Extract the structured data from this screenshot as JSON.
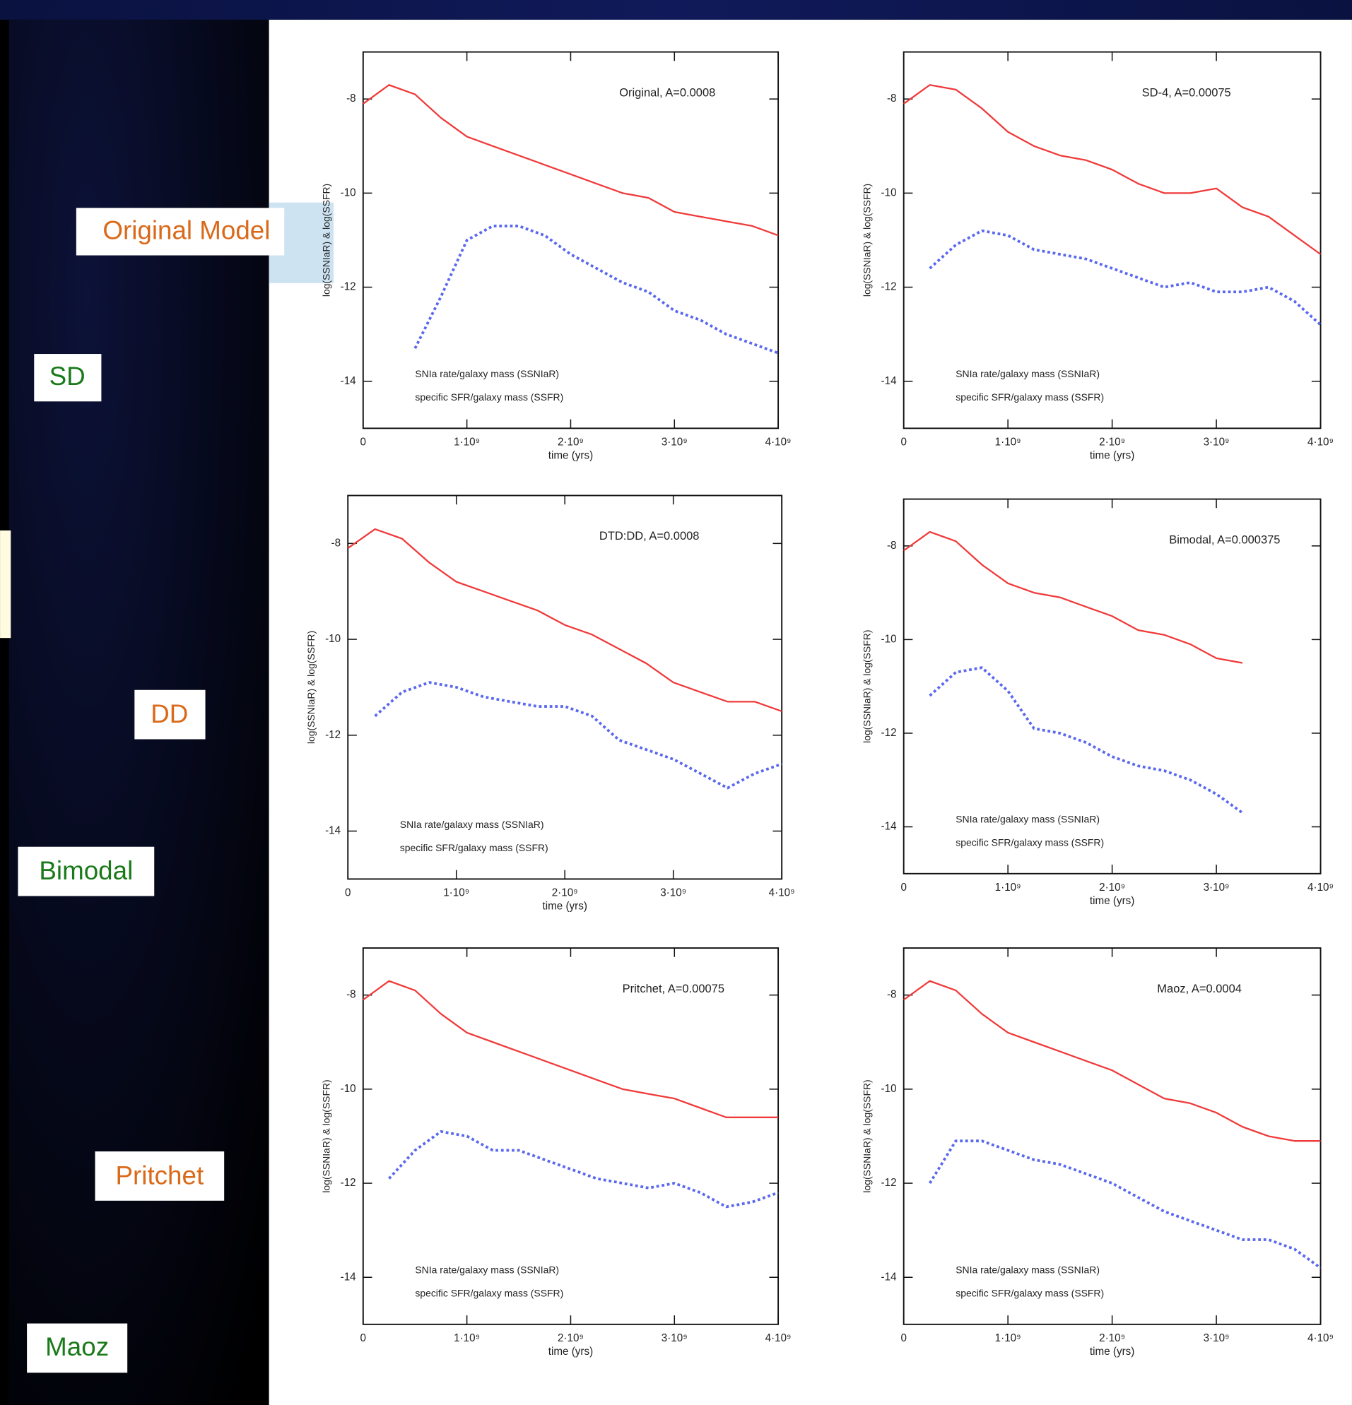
{
  "side_labels": [
    "Original Model",
    "SD",
    "DD",
    "Bimodal",
    "Pritchet",
    "Maoz"
  ],
  "chart_data": [
    {
      "type": "line",
      "title": "Original, A=0.0008",
      "xlabel": "time (yrs)",
      "ylabel": "log(SSNIaR) & log(SSFR)",
      "x": [
        0,
        250000000,
        500000000,
        750000000,
        1000000000,
        1250000000,
        1500000000,
        1750000000,
        2000000000,
        2250000000,
        2500000000,
        2750000000,
        3000000000,
        3250000000,
        3500000000,
        3750000000,
        4000000000
      ],
      "xlim": [
        0,
        4000000000
      ],
      "xticks": [
        0,
        {
          "value": 1000000000,
          "label": "1·10⁹"
        },
        {
          "value": 2000000000,
          "label": "2·10⁹"
        },
        {
          "value": 3000000000,
          "label": "3·10⁹"
        },
        {
          "value": 4000000000,
          "label": "4·10⁹"
        }
      ],
      "ylim": [
        -15,
        -7
      ],
      "yticks": [
        -8,
        -10,
        -12,
        -14
      ],
      "series": [
        {
          "name": "SNIa rate/galaxy mass (SSNIaR)",
          "color": "#5a68ee",
          "values": [
            null,
            null,
            -13.3,
            -12.2,
            -11.0,
            -10.7,
            -10.7,
            -10.9,
            -11.3,
            -11.6,
            -11.9,
            -12.1,
            -12.5,
            -12.7,
            -13.0,
            -13.2,
            -13.4
          ]
        },
        {
          "name": "specific SFR/galaxy mass (SSFR)",
          "color": "#f03a3a",
          "values": [
            -8.1,
            -7.7,
            -7.9,
            -8.4,
            -8.8,
            -9.0,
            -9.2,
            -9.4,
            -9.6,
            -9.8,
            -10.0,
            -10.1,
            -10.4,
            -10.5,
            -10.6,
            -10.7,
            -10.9
          ]
        }
      ]
    },
    {
      "type": "line",
      "title": "SD-4, A=0.00075",
      "xlabel": "time (yrs)",
      "ylabel": "log(SSNIaR) & log(SSFR)",
      "x": [
        0,
        250000000,
        500000000,
        750000000,
        1000000000,
        1250000000,
        1500000000,
        1750000000,
        2000000000,
        2250000000,
        2500000000,
        2750000000,
        3000000000,
        3250000000,
        3500000000,
        3750000000,
        4000000000
      ],
      "xlim": [
        0,
        4000000000
      ],
      "xticks": [
        0,
        {
          "value": 1000000000,
          "label": "1·10⁹"
        },
        {
          "value": 2000000000,
          "label": "2·10⁹"
        },
        {
          "value": 3000000000,
          "label": "3·10⁹"
        },
        {
          "value": 4000000000,
          "label": "4·10⁹"
        }
      ],
      "ylim": [
        -15,
        -7
      ],
      "yticks": [
        -8,
        -10,
        -12,
        -14
      ],
      "series": [
        {
          "name": "SNIa rate/galaxy mass (SSNIaR)",
          "color": "#5a68ee",
          "values": [
            null,
            -11.6,
            -11.1,
            -10.8,
            -10.9,
            -11.2,
            -11.3,
            -11.4,
            -11.6,
            -11.8,
            -12.0,
            -11.9,
            -12.1,
            -12.1,
            -12.0,
            -12.3,
            -12.8
          ]
        },
        {
          "name": "specific SFR/galaxy mass (SSFR)",
          "color": "#f03a3a",
          "values": [
            -8.1,
            -7.7,
            -7.8,
            -8.2,
            -8.7,
            -9.0,
            -9.2,
            -9.3,
            -9.5,
            -9.8,
            -10.0,
            -10.0,
            -9.9,
            -10.3,
            -10.5,
            -10.9,
            -11.3
          ]
        }
      ]
    },
    {
      "type": "line",
      "title": "DTD:DD, A=0.0008",
      "xlabel": "time (yrs)",
      "ylabel": "log(SSNIaR) & log(SSFR)",
      "x": [
        0,
        250000000,
        500000000,
        750000000,
        1000000000,
        1250000000,
        1500000000,
        1750000000,
        2000000000,
        2250000000,
        2500000000,
        2750000000,
        3000000000,
        3250000000,
        3500000000,
        3750000000,
        4000000000
      ],
      "xlim": [
        0,
        4000000000
      ],
      "xticks": [
        0,
        {
          "value": 1000000000,
          "label": "1·10⁹"
        },
        {
          "value": 2000000000,
          "label": "2·10⁹"
        },
        {
          "value": 3000000000,
          "label": "3·10⁹"
        },
        {
          "value": 4000000000,
          "label": "4·10⁹"
        }
      ],
      "ylim": [
        -15,
        -7
      ],
      "yticks": [
        -8,
        -10,
        -12,
        -14
      ],
      "series": [
        {
          "name": "SNIa rate/galaxy mass (SSNIaR)",
          "color": "#5a68ee",
          "values": [
            null,
            -11.6,
            -11.1,
            -10.9,
            -11.0,
            -11.2,
            -11.3,
            -11.4,
            -11.4,
            -11.6,
            -12.1,
            -12.3,
            -12.5,
            -12.8,
            -13.1,
            -12.8,
            -12.6
          ]
        },
        {
          "name": "specific SFR/galaxy mass (SSFR)",
          "color": "#f03a3a",
          "values": [
            -8.1,
            -7.7,
            -7.9,
            -8.4,
            -8.8,
            -9.0,
            -9.2,
            -9.4,
            -9.7,
            -9.9,
            -10.2,
            -10.5,
            -10.9,
            -11.1,
            -11.3,
            -11.3,
            -11.5
          ]
        }
      ]
    },
    {
      "type": "line",
      "title": "Bimodal, A=0.000375",
      "xlabel": "time (yrs)",
      "ylabel": "log(SSNIaR) & log(SSFR)",
      "x": [
        0,
        250000000,
        500000000,
        750000000,
        1000000000,
        1250000000,
        1500000000,
        1750000000,
        2000000000,
        2250000000,
        2500000000,
        2750000000,
        3000000000,
        3250000000,
        3500000000,
        3750000000,
        4000000000
      ],
      "xlim": [
        0,
        4000000000
      ],
      "xticks": [
        0,
        {
          "value": 1000000000,
          "label": "1·10⁹"
        },
        {
          "value": 2000000000,
          "label": "2·10⁹"
        },
        {
          "value": 3000000000,
          "label": "3·10⁹"
        },
        {
          "value": 4000000000,
          "label": "4·10⁹"
        }
      ],
      "ylim": [
        -15,
        -7
      ],
      "yticks": [
        -8,
        -10,
        -12,
        -14
      ],
      "series": [
        {
          "name": "SNIa rate/galaxy mass (SSNIaR)",
          "color": "#5a68ee",
          "values": [
            null,
            -11.2,
            -10.7,
            -10.6,
            -11.1,
            -11.9,
            -12.0,
            -12.2,
            -12.5,
            -12.7,
            -12.8,
            -13.0,
            -13.3,
            -13.7,
            null,
            null,
            null
          ]
        },
        {
          "name": "specific SFR/galaxy mass (SSFR)",
          "color": "#f03a3a",
          "values": [
            -8.1,
            -7.7,
            -7.9,
            -8.4,
            -8.8,
            -9.0,
            -9.1,
            -9.3,
            -9.5,
            -9.8,
            -9.9,
            -10.1,
            -10.4,
            -10.5,
            null,
            null,
            null
          ]
        }
      ]
    },
    {
      "type": "line",
      "title": "Pritchet, A=0.00075",
      "xlabel": "time (yrs)",
      "ylabel": "log(SSNIaR) & log(SSFR)",
      "x": [
        0,
        250000000,
        500000000,
        750000000,
        1000000000,
        1250000000,
        1500000000,
        1750000000,
        2000000000,
        2250000000,
        2500000000,
        2750000000,
        3000000000,
        3250000000,
        3500000000,
        3750000000,
        4000000000
      ],
      "xlim": [
        0,
        4000000000
      ],
      "xticks": [
        0,
        {
          "value": 1000000000,
          "label": "1·10⁹"
        },
        {
          "value": 2000000000,
          "label": "2·10⁹"
        },
        {
          "value": 3000000000,
          "label": "3·10⁹"
        },
        {
          "value": 4000000000,
          "label": "4·10⁹"
        }
      ],
      "ylim": [
        -15,
        -7
      ],
      "yticks": [
        -8,
        -10,
        -12,
        -14
      ],
      "series": [
        {
          "name": "SNIa rate/galaxy mass (SSNIaR)",
          "color": "#5a68ee",
          "values": [
            null,
            -11.9,
            -11.3,
            -10.9,
            -11.0,
            -11.3,
            -11.3,
            -11.5,
            -11.7,
            -11.9,
            -12.0,
            -12.1,
            -12.0,
            -12.2,
            -12.5,
            -12.4,
            -12.2
          ]
        },
        {
          "name": "specific SFR/galaxy mass (SSFR)",
          "color": "#f03a3a",
          "values": [
            -8.1,
            -7.7,
            -7.9,
            -8.4,
            -8.8,
            -9.0,
            -9.2,
            -9.4,
            -9.6,
            -9.8,
            -10.0,
            -10.1,
            -10.2,
            -10.4,
            -10.6,
            -10.6,
            -10.6
          ]
        }
      ]
    },
    {
      "type": "line",
      "title": "Maoz, A=0.0004",
      "xlabel": "time (yrs)",
      "ylabel": "log(SSNIaR) & log(SSFR)",
      "x": [
        0,
        250000000,
        500000000,
        750000000,
        1000000000,
        1250000000,
        1500000000,
        1750000000,
        2000000000,
        2250000000,
        2500000000,
        2750000000,
        3000000000,
        3250000000,
        3500000000,
        3750000000,
        4000000000
      ],
      "xlim": [
        0,
        4000000000
      ],
      "xticks": [
        0,
        {
          "value": 1000000000,
          "label": "1·10⁹"
        },
        {
          "value": 2000000000,
          "label": "2·10⁹"
        },
        {
          "value": 3000000000,
          "label": "3·10⁹"
        },
        {
          "value": 4000000000,
          "label": "4·10⁹"
        }
      ],
      "ylim": [
        -15,
        -7
      ],
      "yticks": [
        -8,
        -10,
        -12,
        -14
      ],
      "series": [
        {
          "name": "SNIa rate/galaxy mass (SSNIaR)",
          "color": "#5a68ee",
          "values": [
            null,
            -12.0,
            -11.1,
            -11.1,
            -11.3,
            -11.5,
            -11.6,
            -11.8,
            -12.0,
            -12.3,
            -12.6,
            -12.8,
            -13.0,
            -13.2,
            -13.2,
            -13.4,
            -13.8
          ]
        },
        {
          "name": "specific SFR/galaxy mass (SSFR)",
          "color": "#f03a3a",
          "values": [
            -8.1,
            -7.7,
            -7.9,
            -8.4,
            -8.8,
            -9.0,
            -9.2,
            -9.4,
            -9.6,
            -9.9,
            -10.2,
            -10.3,
            -10.5,
            -10.8,
            -11.0,
            -11.1,
            -11.1
          ]
        }
      ]
    }
  ]
}
